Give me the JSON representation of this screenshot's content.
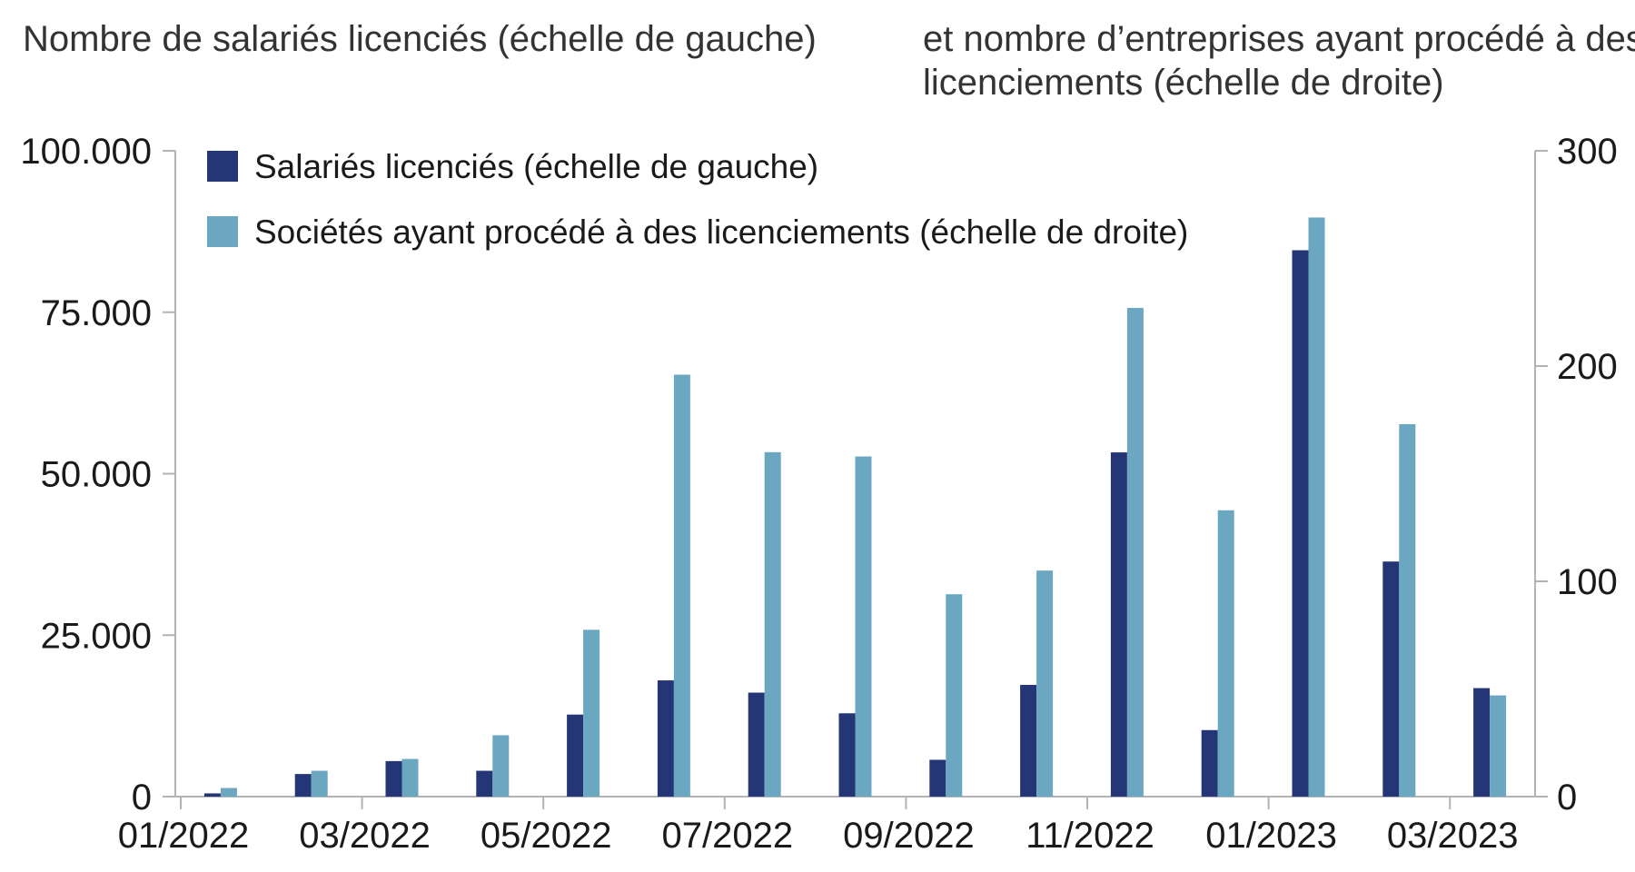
{
  "chart_data": {
    "type": "bar",
    "left_axis_title": "Nombre de salariés licenciés (échelle de gauche)",
    "right_axis_title_lines": [
      "et nombre d’entreprises ayant procédé à des",
      "licenciements (échelle de droite)"
    ],
    "x": [
      "01/2022",
      "02/2022",
      "03/2022",
      "04/2022",
      "05/2022",
      "06/2022",
      "07/2022",
      "08/2022",
      "09/2022",
      "10/2022",
      "11/2022",
      "12/2022",
      "01/2023",
      "02/2023",
      "03/2023"
    ],
    "x_tick_labels": [
      "01/2022",
      "03/2022",
      "05/2022",
      "07/2022",
      "09/2022",
      "11/2022",
      "01/2023",
      "03/2023"
    ],
    "x_tick_label_months": [
      "01/2022",
      "03/2022",
      "05/2022",
      "07/2022",
      "09/2022",
      "11/2022",
      "01/2023",
      "03/2023"
    ],
    "y_left": {
      "ylim": [
        0,
        100000
      ],
      "ticks": [
        0,
        25000,
        50000,
        75000,
        100000
      ],
      "tick_labels": [
        "0",
        "25.000",
        "50.000",
        "75.000",
        "100.000"
      ]
    },
    "y_right": {
      "ylim": [
        0,
        300
      ],
      "ticks": [
        0,
        100,
        200,
        300
      ],
      "tick_labels": [
        "0",
        "100",
        "200",
        "300"
      ]
    },
    "series": [
      {
        "name": "Salariés licenciés (échelle de gauche)",
        "axis": "left",
        "color": "#253677",
        "values": [
          500,
          3500,
          5500,
          4000,
          12700,
          18000,
          16100,
          12900,
          5700,
          17300,
          53300,
          10300,
          84600,
          36400,
          16800
        ]
      },
      {
        "name": "Sociétés ayant procédé à des licenciements (échelle de droite)",
        "axis": "right",
        "color": "#6ba7c1",
        "values": [
          4,
          12,
          17.5,
          28.5,
          77.5,
          196,
          160,
          158,
          94,
          105,
          227,
          133,
          269,
          173,
          47
        ]
      }
    ],
    "legend_position": "top-left",
    "grid": false
  }
}
